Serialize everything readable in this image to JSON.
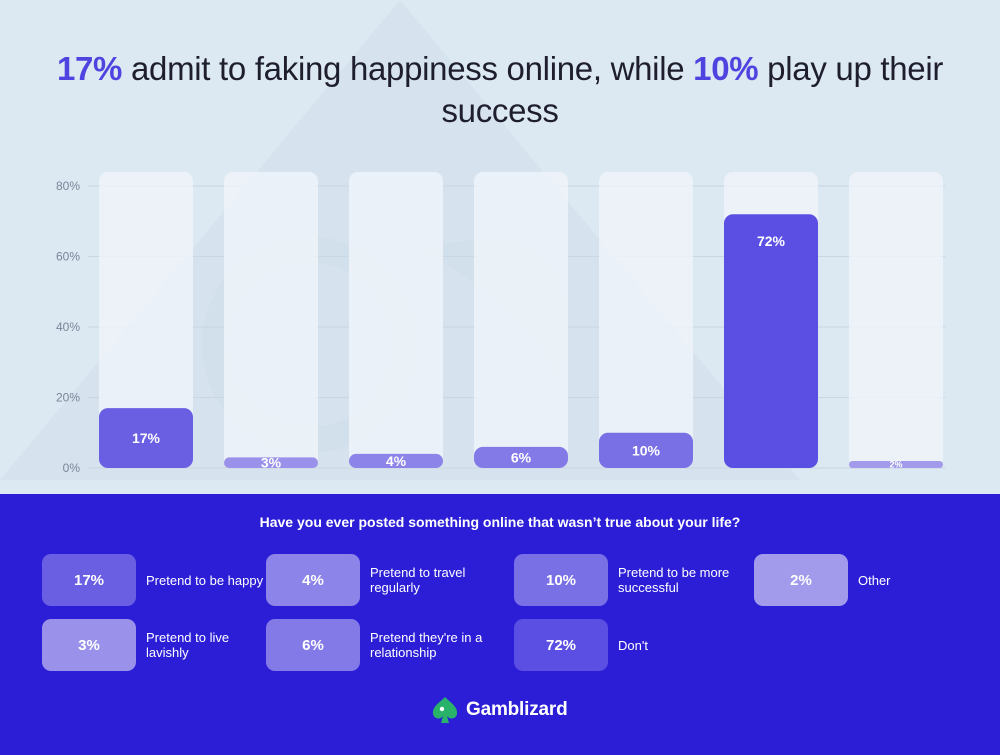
{
  "title": {
    "part1": "17%",
    "part2": " admit to faking happiness online, while ",
    "part3": "10%",
    "part4": " play up their success"
  },
  "question": "Have you ever posted something online that wasn’t true about your life?",
  "brand": "Gamblizard",
  "colors": {
    "accent": "#4f44e0",
    "bottom_bg": "#2b1ed6",
    "bar_primary": "#5b4fe3",
    "bar_mid": "#7d74e6",
    "bar_light": "#9b93ea",
    "bar_track": "#eef3f9",
    "logo_green": "#29b36a"
  },
  "legend": [
    {
      "value": "17%",
      "label": "Pretend to be happy",
      "color": "#6a5fe3"
    },
    {
      "value": "4%",
      "label": "Pretend to travel regularly",
      "color": "#8c84e9"
    },
    {
      "value": "10%",
      "label": "Pretend to be more successful",
      "color": "#7a70e6"
    },
    {
      "value": "2%",
      "label": "Other",
      "color": "#a29bec"
    },
    {
      "value": "3%",
      "label": "Pretend to live lavishly",
      "color": "#9a92ea"
    },
    {
      "value": "6%",
      "label": "Pretend they're in a relationship",
      "color": "#837ae7"
    },
    {
      "value": "72%",
      "label": "Don't",
      "color": "#5b4fe3"
    }
  ],
  "chart_data": {
    "type": "bar",
    "categories": [
      "Pretend to be happy",
      "Pretend to live lavishly",
      "Pretend to travel regularly",
      "Pretend they're in a relationship",
      "Pretend to be more successful",
      "Don't",
      "Other"
    ],
    "values": [
      17,
      3,
      4,
      6,
      10,
      72,
      2
    ],
    "value_labels": [
      "17%",
      "3%",
      "4%",
      "6%",
      "10%",
      "72%",
      "2%"
    ],
    "bar_colors": [
      "#6a5fe3",
      "#9a92ea",
      "#8c84e9",
      "#837ae7",
      "#7a70e6",
      "#5b4fe3",
      "#a29bec"
    ],
    "yticks": [
      0,
      20,
      40,
      60,
      80
    ],
    "ytick_labels": [
      "0%",
      "20%",
      "40%",
      "60%",
      "80%"
    ],
    "ylim": [
      0,
      80
    ],
    "grid": true,
    "title": "17% admit to faking happiness online, while 10% play up their success",
    "xlabel": "",
    "ylabel": ""
  }
}
